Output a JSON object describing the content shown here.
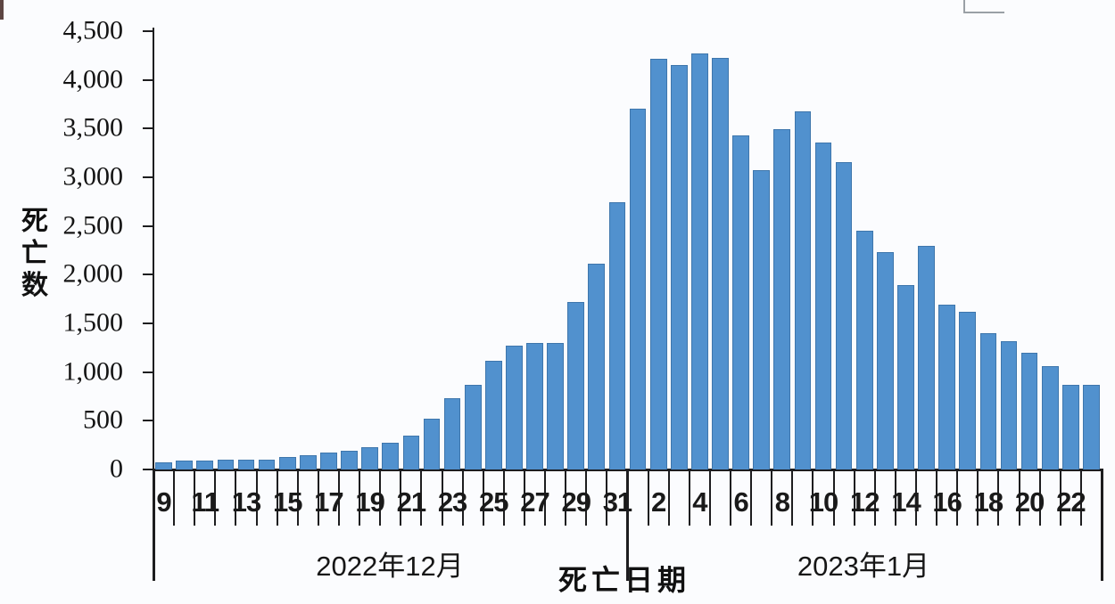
{
  "chart_data": {
    "type": "bar",
    "title": "",
    "ylabel": "死亡数",
    "xlabel": "死亡日期",
    "ylim": [
      0,
      4500
    ],
    "y_tick_interval": 500,
    "y_tick_labels": [
      "4,500",
      "4,000",
      "3,500",
      "3,000",
      "2,500",
      "2,000",
      "1,500",
      "1,000",
      "500",
      "0"
    ],
    "grid": "off",
    "legend": "none",
    "bar_color": "#5191ce",
    "bar_border_color": "#3e76ac",
    "axis_color": "#1d1d1f",
    "groups": [
      {
        "label": "2022年12月",
        "month": 12,
        "first_day": 9,
        "last_day": 31
      },
      {
        "label": "2023年1月",
        "month": 1,
        "first_day": 1,
        "last_day": 23
      }
    ],
    "series": [
      {
        "m": 12,
        "d": 9,
        "v": 75
      },
      {
        "m": 12,
        "d": 10,
        "v": 90
      },
      {
        "m": 12,
        "d": 11,
        "v": 90
      },
      {
        "m": 12,
        "d": 12,
        "v": 100
      },
      {
        "m": 12,
        "d": 13,
        "v": 100
      },
      {
        "m": 12,
        "d": 14,
        "v": 105
      },
      {
        "m": 12,
        "d": 15,
        "v": 130
      },
      {
        "m": 12,
        "d": 16,
        "v": 150
      },
      {
        "m": 12,
        "d": 17,
        "v": 170
      },
      {
        "m": 12,
        "d": 18,
        "v": 190
      },
      {
        "m": 12,
        "d": 19,
        "v": 225
      },
      {
        "m": 12,
        "d": 20,
        "v": 270
      },
      {
        "m": 12,
        "d": 21,
        "v": 345
      },
      {
        "m": 12,
        "d": 22,
        "v": 520
      },
      {
        "m": 12,
        "d": 23,
        "v": 730
      },
      {
        "m": 12,
        "d": 24,
        "v": 870
      },
      {
        "m": 12,
        "d": 25,
        "v": 1120
      },
      {
        "m": 12,
        "d": 26,
        "v": 1275
      },
      {
        "m": 12,
        "d": 27,
        "v": 1300
      },
      {
        "m": 12,
        "d": 28,
        "v": 1295
      },
      {
        "m": 12,
        "d": 29,
        "v": 1720
      },
      {
        "m": 12,
        "d": 30,
        "v": 2110
      },
      {
        "m": 12,
        "d": 31,
        "v": 2740
      },
      {
        "m": 1,
        "d": 1,
        "v": 3700
      },
      {
        "m": 1,
        "d": 2,
        "v": 4220
      },
      {
        "m": 1,
        "d": 3,
        "v": 4150
      },
      {
        "m": 1,
        "d": 4,
        "v": 4270
      },
      {
        "m": 1,
        "d": 5,
        "v": 4230
      },
      {
        "m": 1,
        "d": 6,
        "v": 3430
      },
      {
        "m": 1,
        "d": 7,
        "v": 3070
      },
      {
        "m": 1,
        "d": 8,
        "v": 3490
      },
      {
        "m": 1,
        "d": 9,
        "v": 3680
      },
      {
        "m": 1,
        "d": 10,
        "v": 3360
      },
      {
        "m": 1,
        "d": 11,
        "v": 3160
      },
      {
        "m": 1,
        "d": 12,
        "v": 2450
      },
      {
        "m": 1,
        "d": 13,
        "v": 2230
      },
      {
        "m": 1,
        "d": 14,
        "v": 1890
      },
      {
        "m": 1,
        "d": 15,
        "v": 2300
      },
      {
        "m": 1,
        "d": 16,
        "v": 1690
      },
      {
        "m": 1,
        "d": 17,
        "v": 1620
      },
      {
        "m": 1,
        "d": 18,
        "v": 1400
      },
      {
        "m": 1,
        "d": 19,
        "v": 1320
      },
      {
        "m": 1,
        "d": 20,
        "v": 1200
      },
      {
        "m": 1,
        "d": 21,
        "v": 1060
      },
      {
        "m": 1,
        "d": 22,
        "v": 870
      },
      {
        "m": 1,
        "d": 23,
        "v": 870
      }
    ],
    "x_tick_labels": [
      {
        "slot": 0,
        "label": "9"
      },
      {
        "slot": 2,
        "label": "11"
      },
      {
        "slot": 4,
        "label": "13"
      },
      {
        "slot": 6,
        "label": "15"
      },
      {
        "slot": 8,
        "label": "17"
      },
      {
        "slot": 10,
        "label": "19"
      },
      {
        "slot": 12,
        "label": "21"
      },
      {
        "slot": 14,
        "label": "23"
      },
      {
        "slot": 16,
        "label": "25"
      },
      {
        "slot": 18,
        "label": "27"
      },
      {
        "slot": 20,
        "label": "29"
      },
      {
        "slot": 22,
        "label": "31"
      },
      {
        "slot": 24,
        "label": "2"
      },
      {
        "slot": 26,
        "label": "4"
      },
      {
        "slot": 28,
        "label": "6"
      },
      {
        "slot": 30,
        "label": "8"
      },
      {
        "slot": 32,
        "label": "10"
      },
      {
        "slot": 34,
        "label": "12"
      },
      {
        "slot": 36,
        "label": "14"
      },
      {
        "slot": 38,
        "label": "16"
      },
      {
        "slot": 40,
        "label": "18"
      },
      {
        "slot": 42,
        "label": "20"
      },
      {
        "slot": 44,
        "label": "22"
      }
    ]
  }
}
